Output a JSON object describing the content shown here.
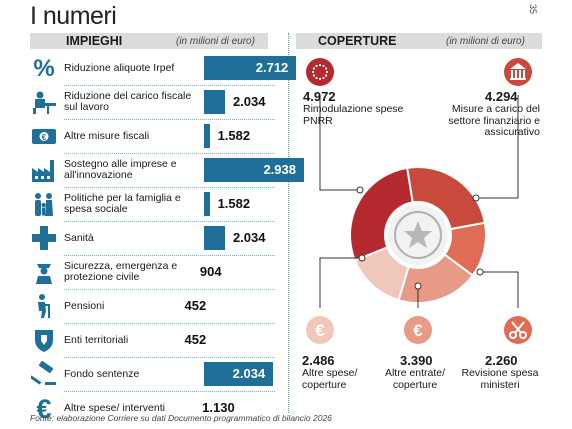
{
  "title": "I numeri",
  "page_number": "35",
  "source": "Fonte: elaborazione Corriere su dati Documento programmatico di bilancio 2026",
  "colors": {
    "bar": "#1f6f98",
    "bar_dark_value": "#ffffff",
    "bar_light_value": "#111111",
    "icon": "#1f6f98",
    "pie": [
      "#b52a2f",
      "#c94a3d",
      "#df6d55",
      "#e79a86",
      "#f0c8bb"
    ]
  },
  "impieghi": {
    "heading": "IMPIEGHI",
    "unit": "(in milioni di euro)"
  },
  "coperture": {
    "heading": "COPERTURE",
    "unit": "(in milioni di euro)"
  },
  "chart_data": [
    {
      "type": "bar",
      "title": "IMPIEGHI",
      "unit": "(in milioni di euro)",
      "categories": [
        "Riduzione aliquote Irpef",
        "Riduzione del carico fiscale sul lavoro",
        "Altre misure fiscali",
        "Sostegno alle imprese e all'innovazione",
        "Politiche per la famiglia e spesa sociale",
        "Sanità",
        "Sicurezza, emergenza e protezione civile",
        "Pensioni",
        "Enti territoriali",
        "Fondo sentenze",
        "Altre spese/ interventi"
      ],
      "values": [
        2712,
        2034,
        1582,
        2938,
        1582,
        2034,
        904,
        452,
        452,
        2034,
        1130
      ],
      "value_labels": [
        "2.712",
        "2.034",
        "1.582",
        "2.938",
        "1.582",
        "2.034",
        "904",
        "452",
        "452",
        "2.034",
        "1.130"
      ],
      "highlight": [
        true,
        false,
        false,
        true,
        false,
        false,
        false,
        false,
        false,
        true,
        false
      ],
      "icons": [
        "percent-icon",
        "worker-desk-icon",
        "banknote-icon",
        "factory-icon",
        "family-icon",
        "health-cross-icon",
        "police-officer-icon",
        "elderly-person-icon",
        "shield-icon",
        "gavel-icon",
        "euro-icon"
      ]
    },
    {
      "type": "pie",
      "title": "COPERTURE",
      "unit": "(in milioni di euro)",
      "categories": [
        "Rimodulazione spese PNRR",
        "Misure a carico del settore finanziario e assicurativo",
        "Revisione spesa ministeri",
        "Altre entrate/ coperture",
        "Altre spese/ coperture"
      ],
      "values": [
        4972,
        4294,
        2260,
        3390,
        2486
      ],
      "value_labels": [
        "4.972",
        "4.294",
        "2.260",
        "3.390",
        "2.486"
      ],
      "icons": [
        "eu-flag-icon",
        "bank-icon",
        "scissors-icon",
        "euro-coin-icon",
        "euro-coin-icon"
      ],
      "center": "emblem-icon"
    }
  ]
}
